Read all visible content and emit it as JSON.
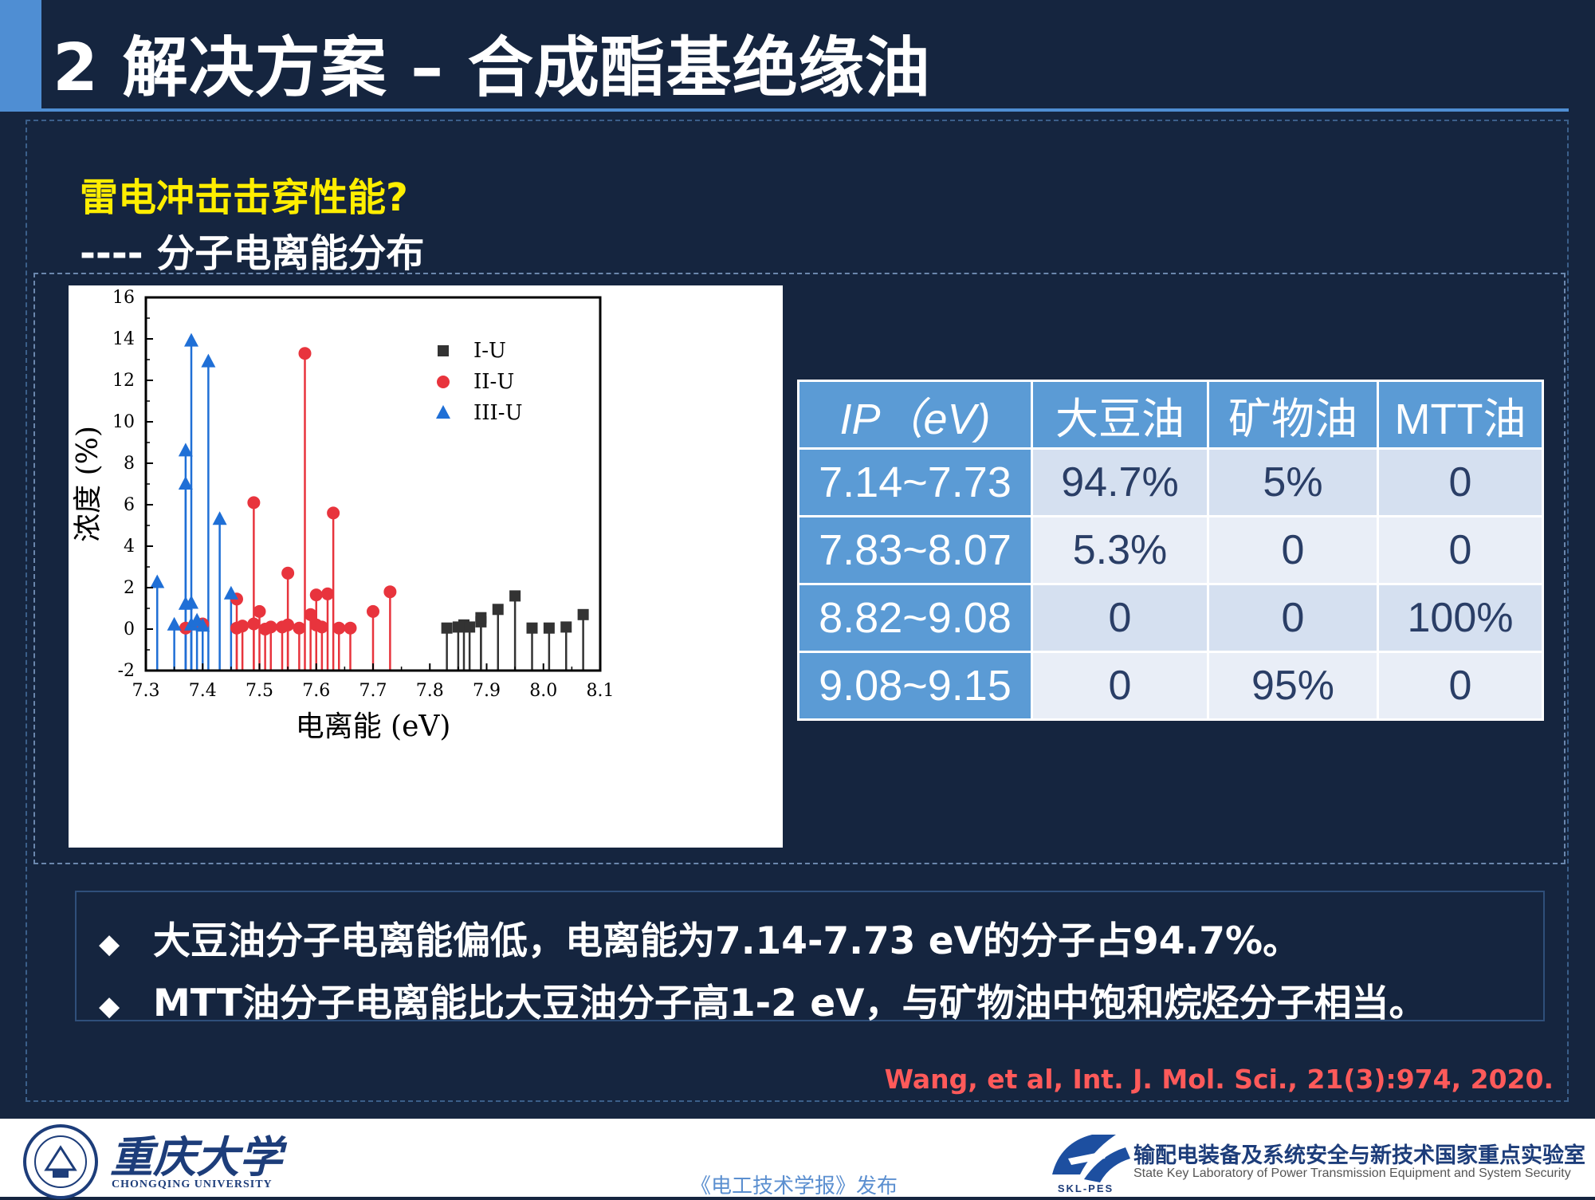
{
  "slide": {
    "title": "2 解决方案 – 合成酯基绝缘油",
    "subtitle1": "雷电冲击击穿性能?",
    "subtitle2": "---- 分子电离能分布"
  },
  "table": {
    "headers": [
      "IP（eV)",
      "大豆油",
      "矿物油",
      "MTT油"
    ],
    "rows": [
      [
        "7.14~7.73",
        "94.7%",
        "5%",
        "0"
      ],
      [
        "7.83~8.07",
        "5.3%",
        "0",
        "0"
      ],
      [
        "8.82~9.08",
        "0",
        "0",
        "100%"
      ],
      [
        "9.08~9.15",
        "0",
        "95%",
        "0"
      ]
    ]
  },
  "bullets": [
    "大豆油分子电离能偏低，电离能为7.14-7.73 eV的分子占94.7%。",
    "MTT油分子电离能比大豆油分子高1-2 eV，与矿物油中饱和烷烃分子相当。"
  ],
  "bullet_marker": "◆",
  "citation": "Wang, et al, Int. J. Mol. Sci., 21(3):974, 2020.",
  "footer": {
    "university_cn": "重庆大学",
    "university_en": "CHONGQING UNIVERSITY",
    "publisher": "《电工技术学报》发布",
    "lab_abbr": "SKL-PES",
    "lab_cn": "输配电装备及系统安全与新技术国家重点实验室",
    "lab_en": "State Key Laboratory of Power Transmission Equipment and System Security"
  },
  "colors": {
    "background": "#15253f",
    "accent": "#4f8ed3",
    "highlight": "#ffee00",
    "citation": "#ff5a5a",
    "series_I": "#333333",
    "series_II": "#e8343d",
    "series_III": "#1f6fd6"
  },
  "chart_data": {
    "type": "scatter",
    "style": "stem",
    "xlabel": "电离能 (eV)",
    "ylabel": "浓度 (%)",
    "xlim": [
      7.3,
      8.1
    ],
    "ylim": [
      -2,
      16
    ],
    "xticks": [
      "7.3",
      "7.4",
      "7.5",
      "7.6",
      "7.7",
      "7.8",
      "7.9",
      "8.0",
      "8.1"
    ],
    "yticks": [
      "-2",
      "0",
      "2",
      "4",
      "6",
      "8",
      "10",
      "12",
      "14",
      "16"
    ],
    "legend_position": "top-center",
    "series": [
      {
        "name": "I-U",
        "marker": "square",
        "points": [
          [
            7.83,
            0.05
          ],
          [
            7.85,
            0.1
          ],
          [
            7.86,
            0.2
          ],
          [
            7.87,
            0.1
          ],
          [
            7.89,
            0.35
          ],
          [
            7.89,
            0.55
          ],
          [
            7.92,
            0.95
          ],
          [
            7.95,
            1.6
          ],
          [
            7.98,
            0.05
          ],
          [
            8.01,
            0.05
          ],
          [
            8.04,
            0.1
          ],
          [
            8.07,
            0.7
          ]
        ]
      },
      {
        "name": "II-U",
        "marker": "circle",
        "points": [
          [
            7.37,
            0.05
          ],
          [
            7.4,
            0.25
          ],
          [
            7.46,
            1.45
          ],
          [
            7.46,
            0.05
          ],
          [
            7.47,
            0.15
          ],
          [
            7.49,
            6.1
          ],
          [
            7.49,
            0.25
          ],
          [
            7.5,
            0.85
          ],
          [
            7.51,
            0.0
          ],
          [
            7.52,
            0.1
          ],
          [
            7.54,
            0.1
          ],
          [
            7.55,
            2.7
          ],
          [
            7.55,
            0.2
          ],
          [
            7.57,
            0.05
          ],
          [
            7.58,
            13.3
          ],
          [
            7.59,
            0.7
          ],
          [
            7.6,
            1.65
          ],
          [
            7.6,
            0.2
          ],
          [
            7.61,
            0.1
          ],
          [
            7.62,
            1.7
          ],
          [
            7.63,
            5.6
          ],
          [
            7.64,
            0.05
          ],
          [
            7.66,
            0.05
          ],
          [
            7.7,
            0.85
          ],
          [
            7.73,
            1.8
          ]
        ]
      },
      {
        "name": "III-U",
        "marker": "triangle",
        "points": [
          [
            7.32,
            2.25
          ],
          [
            7.35,
            0.2
          ],
          [
            7.37,
            8.6
          ],
          [
            7.37,
            7.0
          ],
          [
            7.37,
            1.2
          ],
          [
            7.38,
            13.9
          ],
          [
            7.38,
            1.25
          ],
          [
            7.38,
            0.2
          ],
          [
            7.39,
            0.4
          ],
          [
            7.4,
            0.15
          ],
          [
            7.41,
            12.9
          ],
          [
            7.43,
            5.3
          ],
          [
            7.45,
            1.7
          ]
        ]
      }
    ]
  }
}
